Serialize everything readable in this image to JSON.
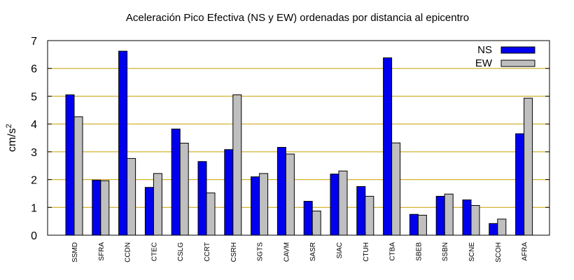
{
  "chart_data": {
    "type": "bar",
    "title": "Aceleración Pico Efectiva (NS y EW) ordenadas por distancia al epicentro",
    "ylabel_base": "cm/s",
    "ylabel_exp": "2",
    "xlabel": "",
    "ylim": [
      0,
      7
    ],
    "yticks": [
      "0",
      "1",
      "2",
      "3",
      "4",
      "5",
      "6",
      "7"
    ],
    "grid": true,
    "legend_position": "top-right",
    "categories": [
      "SSMD",
      "SFRA",
      "CCDN",
      "CTEC",
      "CSLG",
      "CCRT",
      "CSRH",
      "SGTS",
      "CAVM",
      "SASR",
      "SIAC",
      "CTUH",
      "CTBA",
      "SBEB",
      "SSBN",
      "SCNE",
      "SCOH",
      "AFRA"
    ],
    "series": [
      {
        "name": "NS",
        "color": "#0000ee",
        "values": [
          5.05,
          1.98,
          6.62,
          1.72,
          3.82,
          2.65,
          3.08,
          2.1,
          3.16,
          1.22,
          2.2,
          1.75,
          6.38,
          0.75,
          1.4,
          1.27,
          0.42,
          3.65
        ]
      },
      {
        "name": "EW",
        "color": "#bfbfbf",
        "values": [
          4.26,
          1.96,
          2.76,
          2.22,
          3.31,
          1.52,
          5.05,
          2.22,
          2.92,
          0.87,
          2.31,
          1.4,
          3.32,
          0.72,
          1.48,
          1.07,
          0.58,
          4.93
        ]
      }
    ],
    "grid_color": "#c8a000"
  }
}
